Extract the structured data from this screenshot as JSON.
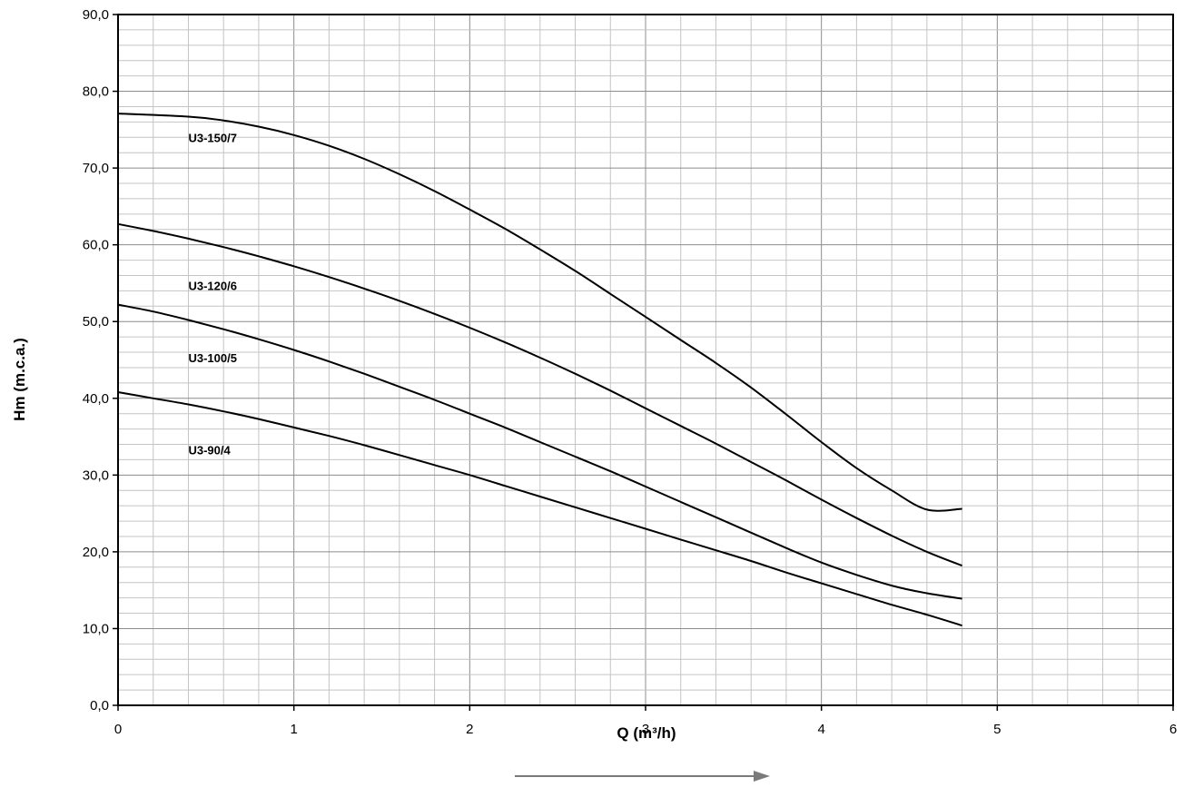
{
  "chart_data": {
    "type": "line",
    "xlabel": "Q (m³/h)",
    "ylabel": "Hm (m.c.a.)",
    "xlim": [
      0,
      6
    ],
    "ylim": [
      0,
      90
    ],
    "x_ticks": [
      "0",
      "1",
      "2",
      "3",
      "4",
      "5",
      "6"
    ],
    "y_ticks": [
      "0,0",
      "10,0",
      "20,0",
      "30,0",
      "40,0",
      "50,0",
      "60,0",
      "70,0",
      "80,0",
      "90,0"
    ],
    "grid": true,
    "legend": "none",
    "series": [
      {
        "name": "U3-150/7",
        "label_at": [
          0.4,
          73.4
        ],
        "points": [
          [
            0,
            77.1
          ],
          [
            0.4,
            76.7
          ],
          [
            0.6,
            76.2
          ],
          [
            0.8,
            75.4
          ],
          [
            1.0,
            74.3
          ],
          [
            1.2,
            72.9
          ],
          [
            1.4,
            71.2
          ],
          [
            1.6,
            69.2
          ],
          [
            1.8,
            67.0
          ],
          [
            2.0,
            64.6
          ],
          [
            2.2,
            62.1
          ],
          [
            2.4,
            59.4
          ],
          [
            2.6,
            56.6
          ],
          [
            2.8,
            53.6
          ],
          [
            3.0,
            50.6
          ],
          [
            3.2,
            47.6
          ],
          [
            3.4,
            44.6
          ],
          [
            3.6,
            41.4
          ],
          [
            3.8,
            37.9
          ],
          [
            4.0,
            34.3
          ],
          [
            4.2,
            30.9
          ],
          [
            4.4,
            28.0
          ],
          [
            4.6,
            25.5
          ],
          [
            4.8,
            25.6
          ]
        ]
      },
      {
        "name": "U3-120/6",
        "label_at": [
          0.4,
          54.1
        ],
        "points": [
          [
            0,
            62.7
          ],
          [
            0.2,
            61.8
          ],
          [
            0.4,
            60.8
          ],
          [
            0.6,
            59.7
          ],
          [
            0.8,
            58.5
          ],
          [
            1.0,
            57.2
          ],
          [
            1.2,
            55.8
          ],
          [
            1.4,
            54.3
          ],
          [
            1.6,
            52.7
          ],
          [
            1.8,
            51.0
          ],
          [
            2.0,
            49.2
          ],
          [
            2.2,
            47.3
          ],
          [
            2.4,
            45.3
          ],
          [
            2.6,
            43.2
          ],
          [
            2.8,
            41.0
          ],
          [
            3.0,
            38.7
          ],
          [
            3.2,
            36.4
          ],
          [
            3.4,
            34.1
          ],
          [
            3.6,
            31.7
          ],
          [
            3.8,
            29.3
          ],
          [
            4.0,
            26.8
          ],
          [
            4.2,
            24.4
          ],
          [
            4.4,
            22.1
          ],
          [
            4.6,
            20.0
          ],
          [
            4.8,
            18.2
          ]
        ]
      },
      {
        "name": "U3-100/5",
        "label_at": [
          0.4,
          44.7
        ],
        "points": [
          [
            0,
            52.2
          ],
          [
            0.2,
            51.3
          ],
          [
            0.4,
            50.2
          ],
          [
            0.6,
            49.0
          ],
          [
            0.8,
            47.7
          ],
          [
            1.0,
            46.3
          ],
          [
            1.2,
            44.8
          ],
          [
            1.4,
            43.2
          ],
          [
            1.6,
            41.5
          ],
          [
            1.8,
            39.8
          ],
          [
            2.0,
            38.0
          ],
          [
            2.2,
            36.2
          ],
          [
            2.4,
            34.3
          ],
          [
            2.6,
            32.4
          ],
          [
            2.8,
            30.5
          ],
          [
            3.0,
            28.5
          ],
          [
            3.2,
            26.5
          ],
          [
            3.4,
            24.5
          ],
          [
            3.6,
            22.5
          ],
          [
            3.8,
            20.5
          ],
          [
            4.0,
            18.6
          ],
          [
            4.2,
            17.0
          ],
          [
            4.4,
            15.6
          ],
          [
            4.6,
            14.6
          ],
          [
            4.8,
            13.9
          ]
        ]
      },
      {
        "name": "U3-90/4",
        "label_at": [
          0.4,
          32.7
        ],
        "points": [
          [
            0,
            40.8
          ],
          [
            0.2,
            40.0
          ],
          [
            0.4,
            39.2
          ],
          [
            0.6,
            38.3
          ],
          [
            0.8,
            37.3
          ],
          [
            1.0,
            36.2
          ],
          [
            1.2,
            35.1
          ],
          [
            1.4,
            33.9
          ],
          [
            1.6,
            32.6
          ],
          [
            1.8,
            31.3
          ],
          [
            2.0,
            30.0
          ],
          [
            2.2,
            28.6
          ],
          [
            2.4,
            27.2
          ],
          [
            2.6,
            25.8
          ],
          [
            2.8,
            24.4
          ],
          [
            3.0,
            23.0
          ],
          [
            3.2,
            21.6
          ],
          [
            3.4,
            20.2
          ],
          [
            3.6,
            18.8
          ],
          [
            3.8,
            17.3
          ],
          [
            4.0,
            15.9
          ],
          [
            4.2,
            14.5
          ],
          [
            4.4,
            13.1
          ],
          [
            4.6,
            11.8
          ],
          [
            4.8,
            10.4
          ]
        ]
      }
    ]
  }
}
